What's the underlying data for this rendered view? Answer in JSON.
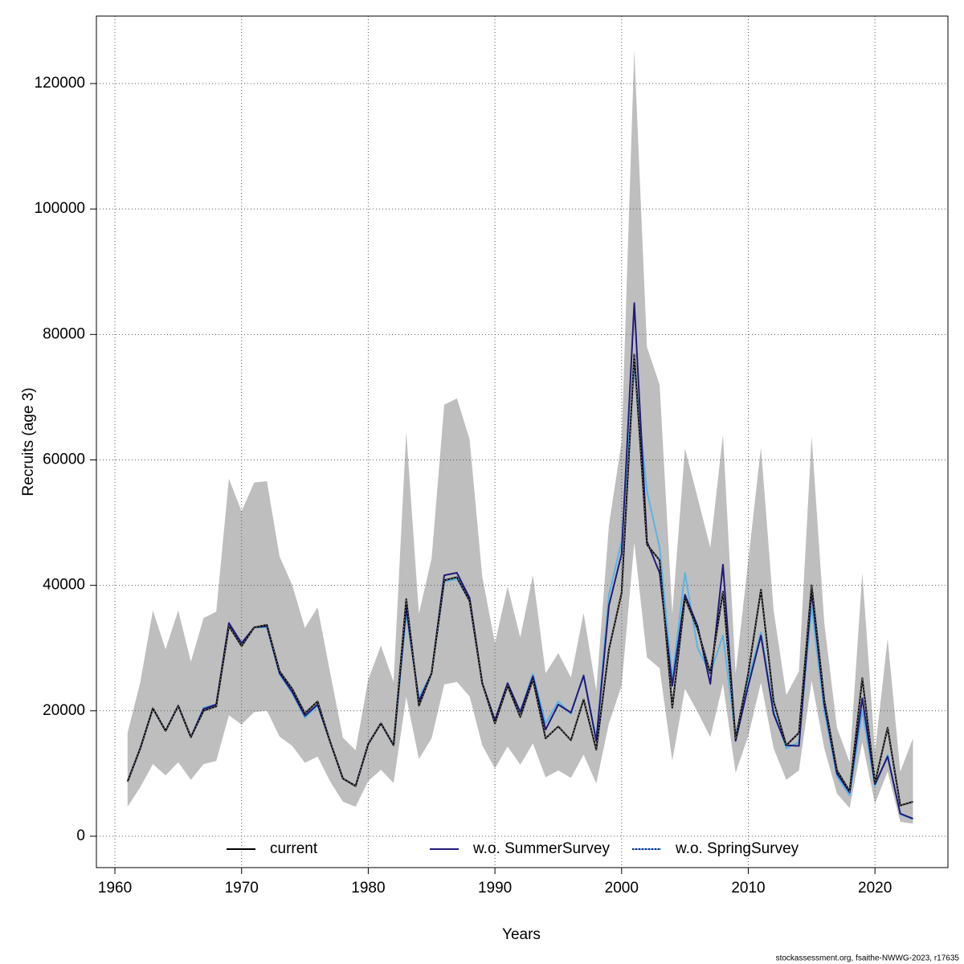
{
  "chart_data": {
    "type": "line",
    "xlabel": "Years",
    "ylabel": "Recruits (age 3)",
    "footer": "stockassessment.org, fsaithe-NWWG-2023, r17635",
    "x": [
      1961,
      1962,
      1963,
      1964,
      1965,
      1966,
      1967,
      1968,
      1969,
      1970,
      1971,
      1972,
      1973,
      1974,
      1975,
      1976,
      1977,
      1978,
      1979,
      1980,
      1981,
      1982,
      1983,
      1984,
      1985,
      1986,
      1987,
      1988,
      1989,
      1990,
      1991,
      1992,
      1993,
      1994,
      1995,
      1996,
      1997,
      1998,
      1999,
      2000,
      2001,
      2002,
      2003,
      2004,
      2005,
      2006,
      2007,
      2008,
      2009,
      2010,
      2011,
      2012,
      2013,
      2014,
      2015,
      2016,
      2017,
      2018,
      2019,
      2020,
      2021,
      2022,
      2023
    ],
    "band": {
      "color": "#bebebe",
      "lower": [
        4700,
        7800,
        11500,
        9700,
        11800,
        9000,
        11500,
        12000,
        19300,
        17800,
        19800,
        20000,
        15900,
        14400,
        11700,
        12700,
        8700,
        5500,
        4700,
        8800,
        10600,
        8500,
        22200,
        12300,
        15600,
        24200,
        24600,
        22300,
        14500,
        10800,
        14300,
        11400,
        14800,
        9400,
        10500,
        9300,
        13000,
        8400,
        18000,
        24000,
        46800,
        28500,
        26800,
        12000,
        23500,
        19800,
        15800,
        24300,
        10100,
        16000,
        24500,
        14000,
        9000,
        10500,
        24800,
        14000,
        6800,
        4500,
        15000,
        5200,
        10300,
        2300,
        2000
      ],
      "upper": [
        16500,
        24500,
        36000,
        29800,
        36000,
        27800,
        34800,
        35800,
        57000,
        51800,
        56400,
        56600,
        44600,
        40000,
        33200,
        36500,
        26000,
        15700,
        13700,
        25000,
        30400,
        24600,
        64500,
        35500,
        44300,
        68800,
        69800,
        63300,
        41400,
        30800,
        39800,
        31700,
        41600,
        26000,
        29200,
        25300,
        35600,
        23200,
        49600,
        62900,
        125400,
        78000,
        72000,
        35500,
        61800,
        54000,
        46000,
        64000,
        26000,
        44000,
        62000,
        36000,
        22500,
        26300,
        63800,
        34000,
        17300,
        11800,
        42000,
        13500,
        31500,
        10300,
        15600
      ]
    },
    "series": [
      {
        "name": "current",
        "color": "#000000",
        "linestyle": "solid",
        "values": [
          8700,
          14000,
          20400,
          16800,
          20800,
          15800,
          20000,
          20700,
          33500,
          30300,
          33300,
          33700,
          26300,
          23500,
          19600,
          21500,
          15000,
          9200,
          8000,
          14700,
          18000,
          14500,
          37800,
          20800,
          26000,
          40800,
          41300,
          37500,
          24400,
          18000,
          24000,
          19000,
          25000,
          15600,
          17500,
          15300,
          21800,
          13800,
          29800,
          38800,
          76800,
          46500,
          44000,
          20500,
          38000,
          33000,
          26000,
          39000,
          15500,
          26000,
          39300,
          21500,
          14500,
          16500,
          40000,
          21700,
          10500,
          7200,
          25200,
          8500,
          17300,
          4900,
          5500
        ]
      },
      {
        "name": "w.o. SummerSurvey",
        "color": "#1f1a7a",
        "linestyle": "solid",
        "values": [
          8700,
          14000,
          20400,
          16800,
          20800,
          15800,
          20300,
          21000,
          34000,
          30800,
          33300,
          33500,
          26000,
          23000,
          19200,
          21000,
          15000,
          9200,
          8000,
          14700,
          18000,
          14500,
          36500,
          21500,
          26000,
          41600,
          42000,
          38000,
          24400,
          18500,
          24400,
          19800,
          25500,
          17000,
          21000,
          19700,
          25600,
          15200,
          36800,
          45000,
          85000,
          47000,
          42000,
          24000,
          38500,
          33500,
          24300,
          43300,
          15200,
          24000,
          32000,
          19500,
          14500,
          14400,
          39000,
          21000,
          10000,
          7000,
          22000,
          8300,
          12700,
          3600,
          2800
        ]
      },
      {
        "name": "w.o. SpringSurvey",
        "color": "#5ab4e6",
        "linestyle": "dotted",
        "values": [
          8700,
          14000,
          20400,
          16800,
          20800,
          15800,
          20500,
          21000,
          33800,
          30800,
          33300,
          33300,
          25800,
          22800,
          18900,
          20800,
          15000,
          9200,
          8000,
          14700,
          18000,
          14500,
          35500,
          22000,
          26000,
          40600,
          41000,
          37500,
          24400,
          18500,
          24400,
          19800,
          25900,
          18000,
          21500,
          19500,
          25700,
          15500,
          38500,
          47000,
          75000,
          55000,
          46000,
          25000,
          42000,
          30000,
          26000,
          32000,
          16000,
          25000,
          32500,
          20000,
          14000,
          15000,
          36500,
          20000,
          9500,
          6500,
          20000,
          8000,
          13000,
          3500,
          2700
        ]
      }
    ],
    "xlim": [
      1958.54,
      2025.76
    ],
    "xticks": [
      1960,
      1970,
      1980,
      1990,
      2000,
      2010,
      2020
    ],
    "ylim": [
      -5000,
      130760
    ],
    "yticks": [
      0,
      20000,
      40000,
      60000,
      80000,
      100000,
      120000
    ],
    "grid": true,
    "legend": "bottom"
  }
}
